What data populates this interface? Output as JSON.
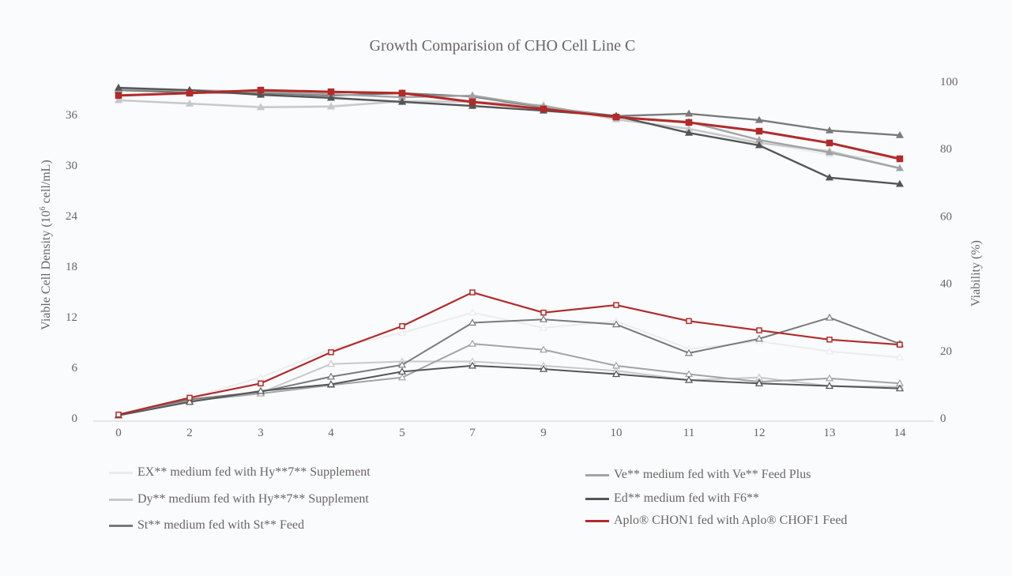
{
  "chart_data": {
    "type": "line",
    "title": "Growth Comparision of CHO Cell Line C",
    "xlabel": "",
    "ylabel": "Viable Cell Density (10⁶ cell/mL)",
    "ylabel_parts": {
      "pre": "Viable Cell Density  (10",
      "sup": "6",
      "post": " cell/mL)"
    },
    "y2label": "Viability (%)",
    "categories": [
      "0",
      "2",
      "3",
      "4",
      "5",
      "7",
      "9",
      "10",
      "11",
      "12",
      "13",
      "14"
    ],
    "ylim": [
      0,
      42
    ],
    "yticks": [
      0,
      6,
      12,
      18,
      24,
      30,
      36
    ],
    "y2lim": [
      0,
      100
    ],
    "y2ticks": [
      0,
      20,
      40,
      60,
      80,
      100
    ],
    "grid": false,
    "legend_position": "bottom",
    "series": [
      {
        "name": "EX** medium fed with Hy**7** Supplement",
        "color": "#ececec",
        "marker": "triangle",
        "vcd": [
          0.4,
          2.4,
          4.8,
          8.2,
          10.1,
          12.5,
          10.7,
          11.5,
          8.2,
          9.1,
          7.9,
          7.2
        ],
        "viability": [
          94.4,
          93.4,
          92.5,
          92.7,
          94.1,
          94.1,
          92.7,
          89.0,
          86.0,
          82.0,
          78.2,
          77.0
        ]
      },
      {
        "name": "Dy** medium fed with Hy**7** Supplement",
        "color": "#c8c8c8",
        "marker": "triangle",
        "vcd": [
          0.3,
          2.2,
          3.0,
          6.4,
          6.7,
          6.7,
          6.2,
          5.6,
          4.5,
          4.8,
          3.8,
          3.7
        ],
        "viability": [
          94.4,
          93.4,
          92.3,
          92.5,
          94.1,
          93.9,
          92.9,
          88.7,
          85.9,
          81.7,
          79.3,
          74.2
        ]
      },
      {
        "name": "St** medium fed with St** Feed",
        "color": "#7a7a7a",
        "marker": "triangle",
        "vcd": [
          0.3,
          2.2,
          3.1,
          4.9,
          6.3,
          11.3,
          11.7,
          11.1,
          7.7,
          9.4,
          11.9,
          8.8
        ],
        "viability": [
          97.4,
          96.7,
          96.5,
          95.8,
          96.5,
          95.5,
          92.3,
          89.7,
          90.4,
          88.5,
          85.4,
          84.0
        ]
      },
      {
        "name": "Ve** medium fed with Ve** Feed Plus",
        "color": "#a3a3a3",
        "marker": "triangle",
        "vcd": [
          0.3,
          2.0,
          2.9,
          3.9,
          4.8,
          8.8,
          8.1,
          6.2,
          5.2,
          4.3,
          4.7,
          4.1
        ],
        "viability": [
          97.7,
          97.4,
          96.9,
          96.2,
          95.3,
          95.8,
          92.5,
          89.4,
          88.0,
          82.6,
          78.9,
          74.2
        ]
      },
      {
        "name": "Ed** medium fed with F6**",
        "color": "#555555",
        "marker": "triangle",
        "vcd": [
          0.3,
          1.9,
          3.2,
          4.0,
          5.5,
          6.2,
          5.8,
          5.2,
          4.5,
          4.1,
          3.8,
          3.5
        ],
        "viability": [
          98.1,
          97.4,
          96.0,
          95.1,
          93.9,
          92.7,
          91.3,
          89.7,
          84.7,
          81.0,
          71.4,
          69.5
        ]
      },
      {
        "name": "Aplo® CHON1 fed with Aplo® CHOF1 Feed",
        "color": "#b22a2a",
        "marker": "square",
        "vcd": [
          0.4,
          2.4,
          4.1,
          7.8,
          10.9,
          14.9,
          12.5,
          13.4,
          11.5,
          10.4,
          9.3,
          8.7
        ],
        "viability": [
          95.8,
          96.5,
          97.4,
          96.9,
          96.5,
          93.9,
          91.8,
          89.4,
          87.8,
          85.2,
          81.7,
          77.0
        ]
      }
    ]
  },
  "legend": {
    "items": [
      {
        "label": "EX** medium fed with Hy**7** Supplement",
        "color": "#ececec"
      },
      {
        "label": "Dy** medium fed with Hy**7** Supplement",
        "color": "#c8c8c8"
      },
      {
        "label": "St** medium fed with St** Feed",
        "color": "#7a7a7a"
      },
      {
        "label": "Ve** medium fed with Ve** Feed Plus",
        "color": "#a3a3a3"
      },
      {
        "label": "Ed** medium fed with F6**",
        "color": "#555555"
      },
      {
        "label": "Aplo® CHON1 fed with Aplo® CHOF1 Feed",
        "color": "#b22a2a"
      }
    ]
  }
}
